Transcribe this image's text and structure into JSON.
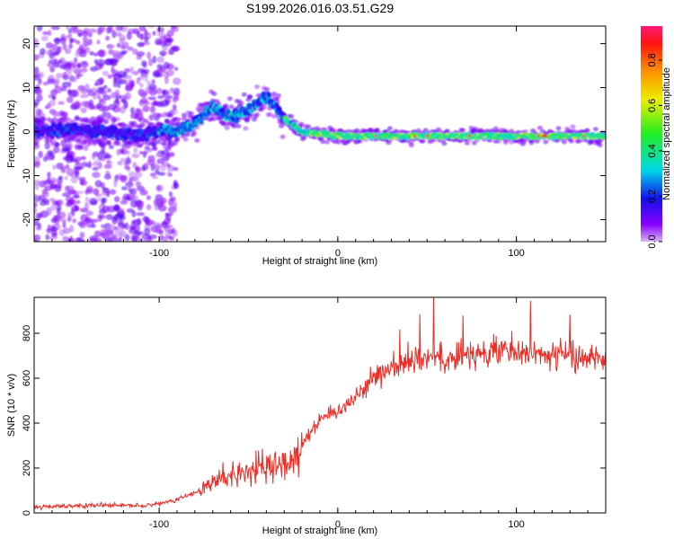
{
  "title": "S199.2026.016.03.51.G29",
  "colors": {
    "snr_line": "#ee2b24",
    "axis": "#000000",
    "background": "#ffffff"
  },
  "chart_data": [
    {
      "type": "heatmap",
      "name": "spectrogram",
      "title": "S199.2026.016.03.51.G29",
      "xlabel": "Height of straight line (km)",
      "ylabel": "Frequency (Hz)",
      "xlim": [
        -170,
        150
      ],
      "ylim": [
        -25,
        24
      ],
      "xticks": [
        -100,
        0,
        100
      ],
      "yticks": [
        -20,
        -10,
        0,
        10,
        20
      ],
      "colorbar": {
        "label": "Normalized spectral amplitude",
        "range": [
          0.0,
          0.95
        ],
        "ticks": [
          0.0,
          0.2,
          0.4,
          0.6,
          0.8
        ],
        "colormap": "rainbow"
      },
      "ridge_frequency_hz": [
        [
          -170,
          0
        ],
        [
          -150,
          0.5
        ],
        [
          -130,
          0
        ],
        [
          -110,
          -1
        ],
        [
          -100,
          0
        ],
        [
          -90,
          0
        ],
        [
          -80,
          2
        ],
        [
          -70,
          6
        ],
        [
          -60,
          3
        ],
        [
          -50,
          5
        ],
        [
          -40,
          8
        ],
        [
          -30,
          3
        ],
        [
          -20,
          0
        ],
        [
          0,
          -1
        ],
        [
          50,
          -1
        ],
        [
          100,
          -1
        ],
        [
          150,
          -1
        ]
      ]
    },
    {
      "type": "line",
      "name": "snr",
      "xlabel": "Height of straight line (km)",
      "ylabel": "SNR (10 * v/v)",
      "xlim": [
        -170,
        150
      ],
      "ylim": [
        0,
        960
      ],
      "xticks": [
        -100,
        0,
        100
      ],
      "yticks": [
        0,
        200,
        400,
        600,
        800
      ],
      "series": [
        {
          "name": "SNR",
          "x": [
            -170,
            -150,
            -130,
            -110,
            -100,
            -90,
            -80,
            -70,
            -60,
            -50,
            -40,
            -30,
            -20,
            -15,
            -10,
            0,
            10,
            20,
            30,
            40,
            50,
            60,
            70,
            80,
            90,
            100,
            110,
            120,
            130,
            140,
            150
          ],
          "values": [
            25,
            30,
            35,
            30,
            40,
            60,
            90,
            130,
            170,
            190,
            200,
            220,
            300,
            370,
            420,
            450,
            520,
            600,
            650,
            680,
            700,
            690,
            700,
            710,
            720,
            720,
            700,
            710,
            700,
            690,
            700
          ]
        }
      ]
    }
  ]
}
